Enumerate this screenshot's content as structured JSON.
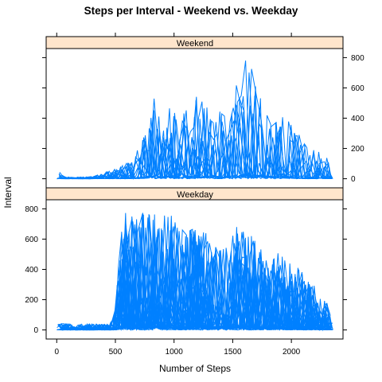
{
  "chart_data": {
    "type": "line",
    "title": "Steps per Interval - Weekend vs. Weekday",
    "xlabel": "Number of Steps",
    "ylabel": "Interval",
    "xlim": [
      -90,
      2440
    ],
    "ylim": [
      -60,
      860
    ],
    "x_ticks": [
      0,
      500,
      1000,
      1500,
      2000
    ],
    "y_ticks": [
      0,
      200,
      400,
      600,
      800
    ],
    "colors": {
      "line": "#0080ff",
      "strip": "#ffe5cc",
      "frame": "#000000"
    },
    "panels": [
      {
        "name": "Weekend",
        "y_axis_side": "right",
        "envelope": [
          [
            0,
            0
          ],
          [
            20,
            55
          ],
          [
            60,
            15
          ],
          [
            150,
            10
          ],
          [
            300,
            15
          ],
          [
            400,
            40
          ],
          [
            550,
            80
          ],
          [
            650,
            140
          ],
          [
            750,
            300
          ],
          [
            800,
            560
          ],
          [
            850,
            550
          ],
          [
            900,
            320
          ],
          [
            960,
            520
          ],
          [
            1050,
            400
          ],
          [
            1150,
            560
          ],
          [
            1250,
            520
          ],
          [
            1350,
            510
          ],
          [
            1450,
            430
          ],
          [
            1520,
            630
          ],
          [
            1600,
            800
          ],
          [
            1650,
            790
          ],
          [
            1720,
            560
          ],
          [
            1800,
            450
          ],
          [
            1900,
            470
          ],
          [
            2000,
            370
          ],
          [
            2100,
            250
          ],
          [
            2200,
            200
          ],
          [
            2300,
            150
          ],
          [
            2355,
            20
          ]
        ]
      },
      {
        "name": "Weekday",
        "y_axis_side": "left",
        "envelope": [
          [
            0,
            45
          ],
          [
            100,
            40
          ],
          [
            300,
            40
          ],
          [
            450,
            40
          ],
          [
            500,
            120
          ],
          [
            550,
            740
          ],
          [
            600,
            790
          ],
          [
            700,
            780
          ],
          [
            800,
            770
          ],
          [
            850,
            790
          ],
          [
            900,
            800
          ],
          [
            950,
            770
          ],
          [
            1050,
            720
          ],
          [
            1150,
            690
          ],
          [
            1250,
            650
          ],
          [
            1350,
            610
          ],
          [
            1450,
            560
          ],
          [
            1550,
            720
          ],
          [
            1600,
            670
          ],
          [
            1700,
            600
          ],
          [
            1800,
            450
          ],
          [
            1900,
            520
          ],
          [
            2000,
            450
          ],
          [
            2100,
            380
          ],
          [
            2200,
            290
          ],
          [
            2300,
            190
          ],
          [
            2355,
            40
          ]
        ]
      }
    ]
  }
}
